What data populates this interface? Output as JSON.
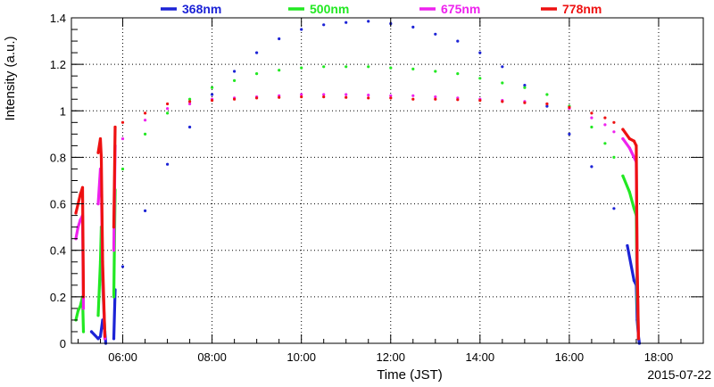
{
  "chart_data": {
    "type": "scatter",
    "title": "",
    "xlabel": "Time (JST)",
    "ylabel": "Intensity (a.u.)",
    "date_label": "2015-07-22",
    "x_unit": "hours (JST)",
    "xlim": [
      4.85,
      19.0
    ],
    "ylim": [
      0,
      1.4
    ],
    "grid": true,
    "legend_position": "top",
    "x_ticks": [
      {
        "value": 6,
        "label": "06:00"
      },
      {
        "value": 8,
        "label": "08:00"
      },
      {
        "value": 10,
        "label": "10:00"
      },
      {
        "value": 12,
        "label": "12:00"
      },
      {
        "value": 14,
        "label": "14:00"
      },
      {
        "value": 16,
        "label": "16:00"
      },
      {
        "value": 18,
        "label": "18:00"
      }
    ],
    "y_ticks": [
      {
        "value": 0,
        "label": "0"
      },
      {
        "value": 0.2,
        "label": "0.2"
      },
      {
        "value": 0.4,
        "label": "0.4"
      },
      {
        "value": 0.6,
        "label": "0.6"
      },
      {
        "value": 0.8,
        "label": "0.8"
      },
      {
        "value": 1.0,
        "label": "1"
      },
      {
        "value": 1.2,
        "label": "1.2"
      },
      {
        "value": 1.4,
        "label": "1.4"
      }
    ],
    "series": [
      {
        "name": "368nm",
        "color": "#1c23d6",
        "points": [
          [
            5.3,
            0.05
          ],
          [
            5.45,
            0.02
          ],
          [
            5.5,
            0.03
          ],
          [
            5.55,
            0.1
          ],
          [
            5.6,
            0.05
          ],
          [
            5.62,
            0.0
          ],
          [
            5.8,
            0.02
          ],
          [
            5.83,
            0.23
          ],
          [
            6.0,
            0.33
          ],
          [
            6.5,
            0.57
          ],
          [
            7.0,
            0.77
          ],
          [
            7.5,
            0.93
          ],
          [
            8.0,
            1.07
          ],
          [
            8.5,
            1.17
          ],
          [
            9.0,
            1.25
          ],
          [
            9.5,
            1.31
          ],
          [
            10.0,
            1.35
          ],
          [
            10.5,
            1.37
          ],
          [
            11.0,
            1.38
          ],
          [
            11.5,
            1.385
          ],
          [
            12.0,
            1.375
          ],
          [
            12.5,
            1.36
          ],
          [
            13.0,
            1.33
          ],
          [
            13.5,
            1.3
          ],
          [
            14.0,
            1.25
          ],
          [
            14.5,
            1.19
          ],
          [
            15.0,
            1.11
          ],
          [
            15.5,
            1.02
          ],
          [
            16.0,
            0.9
          ],
          [
            16.5,
            0.76
          ],
          [
            17.0,
            0.58
          ],
          [
            17.3,
            0.42
          ],
          [
            17.45,
            0.27
          ],
          [
            17.5,
            0.25
          ],
          [
            17.52,
            0.1
          ],
          [
            17.55,
            0.03
          ],
          [
            17.57,
            0.0
          ]
        ]
      },
      {
        "name": "500nm",
        "color": "#22e822",
        "points": [
          [
            4.95,
            0.1
          ],
          [
            5.0,
            0.14
          ],
          [
            5.05,
            0.16
          ],
          [
            5.1,
            0.2
          ],
          [
            5.12,
            0.05
          ],
          [
            5.45,
            0.12
          ],
          [
            5.5,
            0.35
          ],
          [
            5.52,
            0.5
          ],
          [
            5.55,
            0.25
          ],
          [
            5.6,
            0.05
          ],
          [
            5.8,
            0.2
          ],
          [
            5.83,
            0.66
          ],
          [
            6.0,
            0.75
          ],
          [
            6.5,
            0.9
          ],
          [
            7.0,
            0.99
          ],
          [
            7.5,
            1.05
          ],
          [
            8.0,
            1.1
          ],
          [
            8.5,
            1.13
          ],
          [
            9.0,
            1.16
          ],
          [
            9.5,
            1.175
          ],
          [
            10.0,
            1.185
          ],
          [
            10.5,
            1.19
          ],
          [
            11.0,
            1.19
          ],
          [
            11.5,
            1.19
          ],
          [
            12.0,
            1.185
          ],
          [
            12.5,
            1.18
          ],
          [
            13.0,
            1.17
          ],
          [
            13.5,
            1.16
          ],
          [
            14.0,
            1.14
          ],
          [
            14.5,
            1.12
          ],
          [
            15.0,
            1.1
          ],
          [
            15.5,
            1.07
          ],
          [
            16.0,
            1.02
          ],
          [
            16.5,
            0.93
          ],
          [
            16.8,
            0.86
          ],
          [
            17.0,
            0.8
          ],
          [
            17.2,
            0.72
          ],
          [
            17.35,
            0.65
          ],
          [
            17.45,
            0.58
          ],
          [
            17.5,
            0.55
          ],
          [
            17.52,
            0.2
          ],
          [
            17.55,
            0.02
          ]
        ]
      },
      {
        "name": "675nm",
        "color": "#ee22ee",
        "points": [
          [
            4.95,
            0.45
          ],
          [
            5.0,
            0.5
          ],
          [
            5.05,
            0.53
          ],
          [
            5.1,
            0.55
          ],
          [
            5.12,
            0.15
          ],
          [
            5.45,
            0.6
          ],
          [
            5.5,
            0.75
          ],
          [
            5.52,
            0.7
          ],
          [
            5.55,
            0.3
          ],
          [
            5.6,
            0.02
          ],
          [
            5.8,
            0.4
          ],
          [
            5.83,
            0.85
          ],
          [
            6.0,
            0.88
          ],
          [
            6.5,
            0.96
          ],
          [
            7.0,
            1.01
          ],
          [
            7.5,
            1.03
          ],
          [
            8.0,
            1.05
          ],
          [
            8.5,
            1.055
          ],
          [
            9.0,
            1.06
          ],
          [
            9.5,
            1.065
          ],
          [
            10.0,
            1.07
          ],
          [
            10.5,
            1.07
          ],
          [
            11.0,
            1.07
          ],
          [
            11.5,
            1.068
          ],
          [
            12.0,
            1.065
          ],
          [
            12.5,
            1.065
          ],
          [
            13.0,
            1.06
          ],
          [
            13.5,
            1.055
          ],
          [
            14.0,
            1.05
          ],
          [
            14.5,
            1.045
          ],
          [
            15.0,
            1.04
          ],
          [
            15.5,
            1.03
          ],
          [
            16.0,
            1.01
          ],
          [
            16.5,
            0.97
          ],
          [
            16.8,
            0.94
          ],
          [
            17.0,
            0.91
          ],
          [
            17.2,
            0.88
          ],
          [
            17.35,
            0.84
          ],
          [
            17.45,
            0.8
          ],
          [
            17.5,
            0.78
          ],
          [
            17.52,
            0.3
          ],
          [
            17.55,
            0.02
          ]
        ]
      },
      {
        "name": "778nm",
        "color": "#ee1111",
        "points": [
          [
            4.95,
            0.56
          ],
          [
            5.0,
            0.6
          ],
          [
            5.05,
            0.64
          ],
          [
            5.1,
            0.67
          ],
          [
            5.12,
            0.2
          ],
          [
            5.45,
            0.82
          ],
          [
            5.5,
            0.88
          ],
          [
            5.52,
            0.8
          ],
          [
            5.55,
            0.35
          ],
          [
            5.6,
            0.03
          ],
          [
            5.8,
            0.5
          ],
          [
            5.83,
            0.93
          ],
          [
            6.0,
            0.95
          ],
          [
            6.5,
            0.99
          ],
          [
            7.0,
            1.03
          ],
          [
            7.5,
            1.04
          ],
          [
            8.0,
            1.045
          ],
          [
            8.5,
            1.05
          ],
          [
            9.0,
            1.055
          ],
          [
            9.5,
            1.058
          ],
          [
            10.0,
            1.06
          ],
          [
            10.5,
            1.06
          ],
          [
            11.0,
            1.058
          ],
          [
            11.5,
            1.055
          ],
          [
            12.0,
            1.055
          ],
          [
            12.5,
            1.05
          ],
          [
            13.0,
            1.05
          ],
          [
            13.5,
            1.048
          ],
          [
            14.0,
            1.045
          ],
          [
            14.5,
            1.04
          ],
          [
            15.0,
            1.035
          ],
          [
            15.5,
            1.03
          ],
          [
            16.0,
            1.015
          ],
          [
            16.5,
            0.99
          ],
          [
            16.8,
            0.97
          ],
          [
            17.0,
            0.95
          ],
          [
            17.2,
            0.92
          ],
          [
            17.35,
            0.88
          ],
          [
            17.45,
            0.87
          ],
          [
            17.5,
            0.85
          ],
          [
            17.52,
            0.35
          ],
          [
            17.55,
            0.02
          ]
        ]
      }
    ]
  }
}
